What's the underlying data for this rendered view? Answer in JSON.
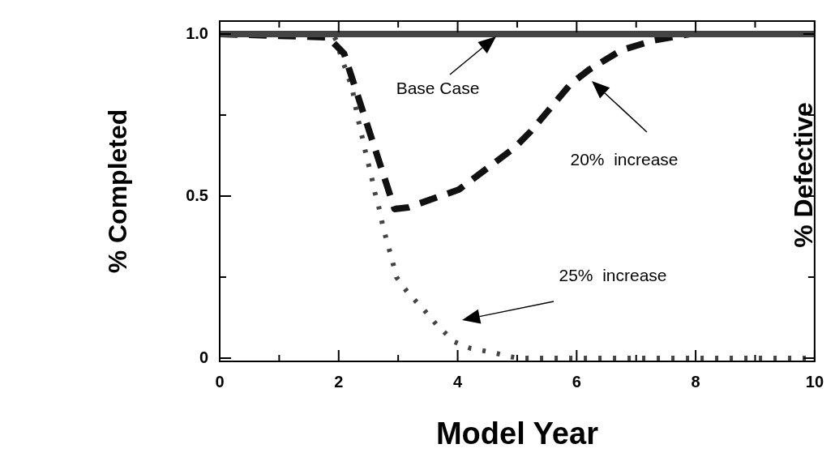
{
  "chart_data": {
    "type": "line",
    "xlabel": "Model Year",
    "ylabel": "% Completed",
    "y2label": "% Defective",
    "xlim": [
      0,
      10
    ],
    "ylim": [
      -0.01,
      1.04
    ],
    "xticks": [
      0,
      {
        "value": 1,
        "label": null
      },
      2,
      {
        "value": 3,
        "label": null
      },
      4,
      {
        "value": 5,
        "label": null
      },
      6,
      {
        "value": 7,
        "label": null
      },
      8,
      {
        "value": 9,
        "label": null
      },
      10
    ],
    "yticks": [
      0,
      {
        "value": 0.25,
        "label": null
      },
      {
        "value": 0.5,
        "label": "0.5"
      },
      {
        "value": 0.75,
        "label": null
      },
      {
        "value": 1,
        "label": "1.0"
      }
    ],
    "grid": false,
    "legend": false,
    "marker": "none",
    "series": [
      {
        "color": "#444444",
        "line_style": "solid",
        "x": [
          0,
          10
        ],
        "values": [
          1,
          1
        ]
      },
      {
        "color": "#111111",
        "line_style": "dashed",
        "x": [
          0,
          1.82,
          2.09,
          2.94,
          3.17,
          4.02,
          4.96,
          5.23,
          5.9,
          6.21,
          6.75,
          7.29,
          7.9,
          10
        ],
        "values": [
          1,
          0.99,
          0.94,
          0.46,
          0.465,
          0.52,
          0.65,
          0.7,
          0.846,
          0.89,
          0.95,
          0.98,
          1,
          1
        ]
      },
      {
        "color": "#444444",
        "line_style": "dotted",
        "x": [
          0,
          1.9,
          1.96,
          2.04,
          2.14,
          2.23,
          2.31,
          2.41,
          2.47,
          2.54,
          2.61,
          2.67,
          2.74,
          2.81,
          2.89,
          2.97,
          3.17,
          3.43,
          3.66,
          3.95,
          4.22,
          4.52,
          5,
          10
        ],
        "values": [
          1,
          1,
          0.98,
          0.93,
          0.88,
          0.83,
          0.75,
          0.67,
          0.62,
          0.57,
          0.51,
          0.47,
          0.41,
          0.36,
          0.31,
          0.25,
          0.2,
          0.15,
          0.1,
          0.05,
          0.03,
          0.02,
          0,
          0
        ]
      }
    ],
    "annotations": [
      "Base Case",
      "20%  increase",
      "25%  increase"
    ]
  }
}
